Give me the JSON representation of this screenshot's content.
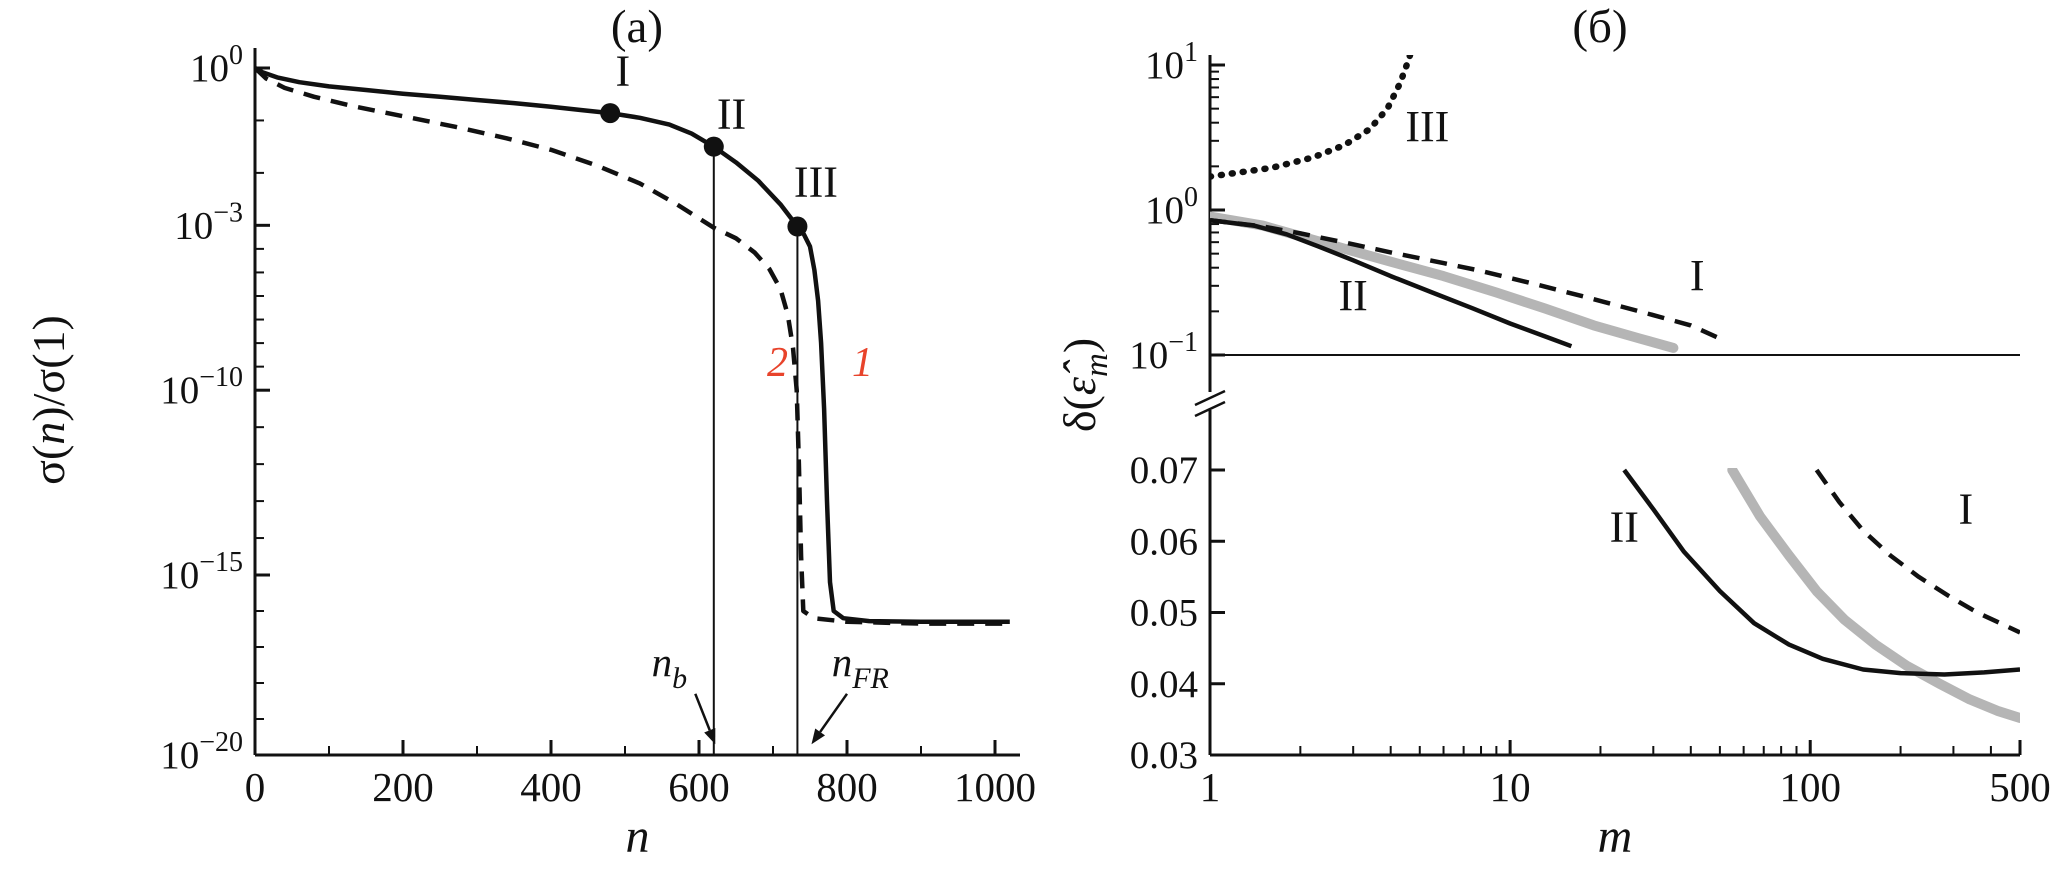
{
  "page": {
    "background": "#ffffff"
  },
  "colors": {
    "ink": "#111111",
    "gray_curve": "#b5b5b5",
    "red_label": "#e8432b"
  },
  "panel_titles": {
    "a": "(а)",
    "b": "(б)"
  },
  "chart_data": [
    {
      "id": "a",
      "type": "line",
      "title": "(а)",
      "xlabel": "n",
      "ylabel": "σ(n)/σ(1)",
      "ylabel_parts": [
        {
          "text": "σ(",
          "italic": false
        },
        {
          "text": "n",
          "italic": true
        },
        {
          "text": ")/σ(1)",
          "italic": false
        }
      ],
      "x_axis": {
        "scale": "linear",
        "min": 0,
        "max": 1000,
        "major_ticks": [
          0,
          200,
          400,
          600,
          800,
          1000
        ],
        "minor_ticks": [
          100,
          300,
          500,
          700,
          900
        ]
      },
      "y_axis": {
        "scale": "log",
        "note": "values are log10 of sigma(n)/sigma(1)",
        "major_ticks": [
          {
            "exp": 0,
            "frac": 0.0
          },
          {
            "exp": -3,
            "frac": 0.229
          },
          {
            "exp": -10,
            "frac": 0.469
          },
          {
            "exp": -15,
            "frac": 0.738
          },
          {
            "exp": -20,
            "frac": 1.0
          }
        ]
      },
      "series": [
        {
          "name": "1",
          "style": "solid",
          "y_unit": "log10",
          "points": [
            [
              0,
              0
            ],
            [
              10,
              -0.08
            ],
            [
              30,
              -0.18
            ],
            [
              60,
              -0.27
            ],
            [
              100,
              -0.35
            ],
            [
              150,
              -0.42
            ],
            [
              200,
              -0.49
            ],
            [
              250,
              -0.55
            ],
            [
              300,
              -0.61
            ],
            [
              350,
              -0.67
            ],
            [
              400,
              -0.74
            ],
            [
              440,
              -0.8
            ],
            [
              480,
              -0.86
            ],
            [
              520,
              -0.95
            ],
            [
              560,
              -1.08
            ],
            [
              590,
              -1.25
            ],
            [
              620,
              -1.5
            ],
            [
              650,
              -1.8
            ],
            [
              680,
              -2.15
            ],
            [
              710,
              -2.6
            ],
            [
              733,
              -3.05
            ],
            [
              742,
              -3.4
            ],
            [
              750,
              -3.9
            ],
            [
              756,
              -4.9
            ],
            [
              761,
              -6.2
            ],
            [
              765,
              -8
            ],
            [
              769,
              -10.5
            ],
            [
              773,
              -13
            ],
            [
              777,
              -15.2
            ],
            [
              782,
              -16
            ],
            [
              795,
              -16.2
            ],
            [
              830,
              -16.28
            ],
            [
              900,
              -16.3
            ],
            [
              1020,
              -16.3
            ]
          ]
        },
        {
          "name": "2",
          "style": "dashed",
          "y_unit": "log10",
          "points": [
            [
              0,
              0
            ],
            [
              15,
              -0.2
            ],
            [
              40,
              -0.38
            ],
            [
              80,
              -0.55
            ],
            [
              130,
              -0.72
            ],
            [
              200,
              -0.92
            ],
            [
              270,
              -1.12
            ],
            [
              340,
              -1.34
            ],
            [
              400,
              -1.56
            ],
            [
              460,
              -1.85
            ],
            [
              520,
              -2.2
            ],
            [
              570,
              -2.6
            ],
            [
              620,
              -3.1
            ],
            [
              650,
              -3.55
            ],
            [
              675,
              -4.15
            ],
            [
              695,
              -4.85
            ],
            [
              710,
              -5.7
            ],
            [
              720,
              -6.8
            ],
            [
              727,
              -8.2
            ],
            [
              732,
              -10
            ],
            [
              735,
              -12
            ],
            [
              738,
              -14.5
            ],
            [
              741,
              -16
            ],
            [
              755,
              -16.2
            ],
            [
              800,
              -16.3
            ],
            [
              900,
              -16.35
            ],
            [
              1020,
              -16.35
            ]
          ]
        }
      ],
      "markers": [
        {
          "label": "I",
          "n": 480,
          "log_value": -0.86
        },
        {
          "label": "II",
          "n": 620,
          "log_value": -1.5
        },
        {
          "label": "III",
          "n": 733,
          "log_value": -3.05
        }
      ],
      "vertical_lines": [
        {
          "name": "n_b",
          "n": 620,
          "from_log": -1.5
        },
        {
          "name": "n_FR",
          "n": 733,
          "from_log": -3.05
        }
      ],
      "labels": [
        {
          "text": "I",
          "n": 497,
          "log_value": -0.33,
          "style": "roman"
        },
        {
          "text": "II",
          "n": 644,
          "log_value": -1.15,
          "style": "roman"
        },
        {
          "text": "III",
          "n": 758,
          "log_value": -2.45,
          "style": "roman"
        },
        {
          "text": "2",
          "n": 706,
          "log_value": -9.4,
          "style": "red-italic"
        },
        {
          "text": "1",
          "n": 821,
          "log_value": -9.4,
          "style": "red-italic"
        }
      ],
      "callouts": [
        {
          "name": "n_b",
          "label_parts": [
            {
              "text": "n",
              "italic": true
            },
            {
              "text": "b",
              "italic": true,
              "sub": true
            }
          ],
          "text_n": 560,
          "text_log": -17.8,
          "arrow_from": [
            595,
            -18.3
          ],
          "arrow_to": [
            622,
            -19.7
          ]
        },
        {
          "name": "n_FR",
          "label_parts": [
            {
              "text": "n",
              "italic": true
            },
            {
              "text": "FR",
              "italic": true,
              "sub": true
            }
          ],
          "text_n": 818,
          "text_log": -17.8,
          "arrow_from": [
            800,
            -18.3
          ],
          "arrow_to": [
            752,
            -19.7
          ]
        }
      ]
    },
    {
      "id": "b",
      "type": "line",
      "title": "(б)",
      "xlabel": "m",
      "ylabel": "δ(ε̂m)",
      "ylabel_parts": [
        {
          "text": "δ(",
          "italic": false
        },
        {
          "text": "ε̂",
          "italic": true
        },
        {
          "text": "m",
          "italic": true,
          "sub": true
        },
        {
          "text": ")",
          "italic": false
        }
      ],
      "x_axis": {
        "scale": "log",
        "min": 1,
        "max": 500,
        "major_ticks": [
          1,
          10,
          100,
          500
        ],
        "minor_ticks": [
          2,
          3,
          4,
          5,
          6,
          7,
          8,
          9,
          20,
          30,
          40,
          50,
          60,
          70,
          80,
          90,
          200,
          300,
          400
        ]
      },
      "y_axis_top": {
        "scale": "log",
        "min": 0.1,
        "max": 10,
        "major_tick_exps": [
          1,
          0,
          -1
        ]
      },
      "y_axis_bottom": {
        "scale": "linear",
        "min": 0.03,
        "max": 0.07,
        "major_ticks": [
          0.07,
          0.06,
          0.05,
          0.04,
          0.03
        ],
        "tick_labels": [
          "0.07",
          "0.06",
          "0.05",
          "0.04",
          "0.03"
        ]
      },
      "baseline_value": 0.1,
      "axis_break": true,
      "series": [
        {
          "name": "gray",
          "segment": "top",
          "style": "gray",
          "points": [
            [
              1,
              0.9
            ],
            [
              1.5,
              0.78
            ],
            [
              2,
              0.66
            ],
            [
              3,
              0.52
            ],
            [
              4,
              0.44
            ],
            [
              6,
              0.35
            ],
            [
              9,
              0.27
            ],
            [
              13,
              0.21
            ],
            [
              19,
              0.16
            ],
            [
              27,
              0.13
            ],
            [
              35,
              0.112
            ]
          ]
        },
        {
          "name": "I",
          "segment": "top",
          "style": "dashed",
          "points": [
            [
              1,
              0.85
            ],
            [
              1.5,
              0.77
            ],
            [
              2,
              0.69
            ],
            [
              3,
              0.58
            ],
            [
              4,
              0.51
            ],
            [
              6,
              0.43
            ],
            [
              8,
              0.38
            ],
            [
              12,
              0.31
            ],
            [
              18,
              0.25
            ],
            [
              27,
              0.2
            ],
            [
              40,
              0.16
            ],
            [
              52,
              0.125
            ]
          ]
        },
        {
          "name": "II",
          "segment": "top",
          "style": "solid",
          "points": [
            [
              1,
              0.85
            ],
            [
              1.4,
              0.78
            ],
            [
              1.8,
              0.68
            ],
            [
              2.3,
              0.56
            ],
            [
              3,
              0.45
            ],
            [
              4,
              0.35
            ],
            [
              5.5,
              0.27
            ],
            [
              7.5,
              0.21
            ],
            [
              10,
              0.165
            ],
            [
              13,
              0.135
            ],
            [
              16,
              0.115
            ]
          ]
        },
        {
          "name": "III",
          "segment": "top",
          "style": "dotted",
          "points": [
            [
              1,
              1.7
            ],
            [
              1.6,
              1.95
            ],
            [
              2.2,
              2.3
            ],
            [
              2.8,
              2.8
            ],
            [
              3.4,
              3.6
            ],
            [
              3.9,
              5
            ],
            [
              4.3,
              7.5
            ],
            [
              4.6,
              11
            ],
            [
              4.75,
              14
            ]
          ]
        },
        {
          "name": "gray",
          "segment": "bottom",
          "style": "gray",
          "points": [
            [
              55,
              0.07
            ],
            [
              68,
              0.0635
            ],
            [
              85,
              0.058
            ],
            [
              105,
              0.053
            ],
            [
              130,
              0.049
            ],
            [
              165,
              0.0455
            ],
            [
              210,
              0.0425
            ],
            [
              270,
              0.04
            ],
            [
              340,
              0.0378
            ],
            [
              420,
              0.0362
            ],
            [
              500,
              0.0352
            ]
          ]
        },
        {
          "name": "I",
          "segment": "bottom",
          "style": "dashed",
          "points": [
            [
              105,
              0.07
            ],
            [
              125,
              0.0655
            ],
            [
              150,
              0.0615
            ],
            [
              185,
              0.058
            ],
            [
              230,
              0.055
            ],
            [
              290,
              0.0523
            ],
            [
              360,
              0.05
            ],
            [
              440,
              0.0483
            ],
            [
              500,
              0.0472
            ]
          ]
        },
        {
          "name": "II",
          "segment": "bottom",
          "style": "solid",
          "points": [
            [
              24,
              0.07
            ],
            [
              30,
              0.0645
            ],
            [
              38,
              0.0585
            ],
            [
              50,
              0.053
            ],
            [
              65,
              0.0485
            ],
            [
              85,
              0.0455
            ],
            [
              110,
              0.0435
            ],
            [
              150,
              0.042
            ],
            [
              200,
              0.0415
            ],
            [
              280,
              0.0413
            ],
            [
              380,
              0.0416
            ],
            [
              500,
              0.042
            ]
          ]
        }
      ],
      "labels": [
        {
          "text": "III",
          "m": 5.3,
          "value": 3.0,
          "segment": "top"
        },
        {
          "text": "I",
          "m": 42,
          "value": 0.28,
          "segment": "top"
        },
        {
          "text": "II",
          "m": 3.0,
          "value": 0.205,
          "segment": "top"
        },
        {
          "text": "II",
          "m": 24,
          "value": 0.06,
          "segment": "bottom"
        },
        {
          "text": "I",
          "m": 330,
          "value": 0.0625,
          "segment": "bottom"
        }
      ]
    }
  ]
}
